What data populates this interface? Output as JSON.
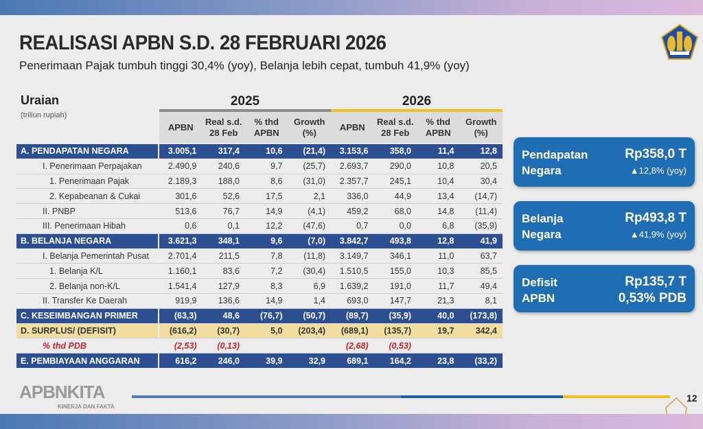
{
  "header": {
    "title": "REALISASI APBN S.D. 28 FEBRUARI 2026",
    "subtitle": "Penerimaan Pajak tumbuh tinggi 30,4% (yoy), Belanja lebih cepat, tumbuh 41,9% (yoy)"
  },
  "table": {
    "label_header": "Uraian",
    "unit": "(triliun rupiah)",
    "years": [
      "2025",
      "2026"
    ],
    "columns": [
      "APBN",
      "Real s.d. 28 Feb",
      "% thd APBN",
      "Growth (%)",
      "APBN",
      "Real s.d. 28 Feb",
      "% thd APBN",
      "Growth (%)"
    ],
    "rows": [
      {
        "label": "A. PENDAPATAN NEGARA",
        "style": "dark",
        "indent": 0,
        "values": [
          "3.005,1",
          "317,4",
          "10,6",
          "(21,4)",
          "3.153,6",
          "358,0",
          "11,4",
          "12,8"
        ]
      },
      {
        "label": "I. Penerimaan Perpajakan",
        "style": "",
        "indent": 1,
        "values": [
          "2.490,9",
          "240,6",
          "9,7",
          "(25,7)",
          "2.693,7",
          "290,0",
          "10,8",
          "20,5"
        ]
      },
      {
        "label": "1.  Penerimaan Pajak",
        "style": "",
        "indent": 2,
        "values": [
          "2.189,3",
          "188,0",
          "8,6",
          "(31,0)",
          "2.357,7",
          "245,1",
          "10,4",
          "30,4"
        ]
      },
      {
        "label": "2.  Kepabeanan & Cukai",
        "style": "",
        "indent": 2,
        "values": [
          "301,6",
          "52,6",
          "17,5",
          "2,1",
          "336,0",
          "44,9",
          "13,4",
          "(14,7)"
        ]
      },
      {
        "label": "II. PNBP",
        "style": "",
        "indent": 1,
        "values": [
          "513,6",
          "76,7",
          "14,9",
          "(4,1)",
          "459,2",
          "68,0",
          "14,8",
          "(11,4)"
        ]
      },
      {
        "label": "III. Penerimaan Hibah",
        "style": "",
        "indent": 1,
        "values": [
          "0,6",
          "0,1",
          "12,2",
          "(47,6)",
          "0,7",
          "0,0",
          "6,8",
          "(35,9)"
        ]
      },
      {
        "label": "B. BELANJA NEGARA",
        "style": "dark",
        "indent": 0,
        "values": [
          "3.621,3",
          "348,1",
          "9,6",
          "(7,0)",
          "3.842,7",
          "493,8",
          "12,8",
          "41,9"
        ]
      },
      {
        "label": "I. Belanja Pemerintah Pusat",
        "style": "",
        "indent": 1,
        "values": [
          "2.701,4",
          "211,5",
          "7,8",
          "(11,8)",
          "3.149,7",
          "346,1",
          "11,0",
          "63,7"
        ]
      },
      {
        "label": "1.  Belanja K/L",
        "style": "",
        "indent": 2,
        "values": [
          "1.160,1",
          "83,6",
          "7,2",
          "(30,4)",
          "1.510,5",
          "155,0",
          "10,3",
          "85,5"
        ]
      },
      {
        "label": "2.  Belanja non-K/L",
        "style": "",
        "indent": 2,
        "values": [
          "1.541,4",
          "127,9",
          "8,3",
          "6,9",
          "1.639,2",
          "191,0",
          "11,7",
          "49,4"
        ]
      },
      {
        "label": "II. Transfer Ke Daerah",
        "style": "",
        "indent": 1,
        "values": [
          "919,9",
          "136,6",
          "14,9",
          "1,4",
          "693,0",
          "147,7",
          "21,3",
          "8,1"
        ]
      },
      {
        "label": "C. KESEIMBANGAN PRIMER",
        "style": "dark",
        "indent": 0,
        "values": [
          "(63,3)",
          "48,6",
          "(76,7)",
          "(50,7)",
          "(89,7)",
          "(35,9)",
          "40,0",
          "(173,8)"
        ]
      },
      {
        "label": "D. SURPLUS/ (DEFISIT)",
        "style": "yel",
        "indent": 0,
        "values": [
          "(616,2)",
          "(30,7)",
          "5,0",
          "(203,4)",
          "(689,1)",
          "(135,7)",
          "19,7",
          "342,4"
        ]
      },
      {
        "label": "% thd PDB",
        "style": "red",
        "indent": 1,
        "values": [
          "(2,53)",
          "(0,13)",
          "",
          "",
          "(2,68)",
          "(0,53)",
          "",
          ""
        ]
      },
      {
        "label": "E. PEMBIAYAAN ANGGARAN",
        "style": "dark",
        "indent": 0,
        "values": [
          "616,2",
          "246,0",
          "39,9",
          "32,9",
          "689,1",
          "164,2",
          "23,8",
          "(33,2)"
        ]
      }
    ]
  },
  "cards": [
    {
      "label1": "Pendapatan",
      "label2": "Negara",
      "value": "Rp358,0 T",
      "sub": "▲12,8% (yoy)"
    },
    {
      "label1": "Belanja",
      "label2": "Negara",
      "value": "Rp493,8 T",
      "sub": "▲41,9% (yoy)"
    },
    {
      "label1": "Defisit",
      "label2": "APBN",
      "value": "Rp135,7 T",
      "sub": "0,53% PDB"
    }
  ],
  "footer": {
    "brand": "APBNKITA",
    "tagline": "KINERJA DAN FAKTA",
    "page": "12"
  },
  "colors": {
    "dark_row": "#2d4f92",
    "highlight_row": "#f2dda0",
    "card": "#1f6db3",
    "accent_gold": "#f0c020",
    "negative_red": "#c4262e"
  }
}
